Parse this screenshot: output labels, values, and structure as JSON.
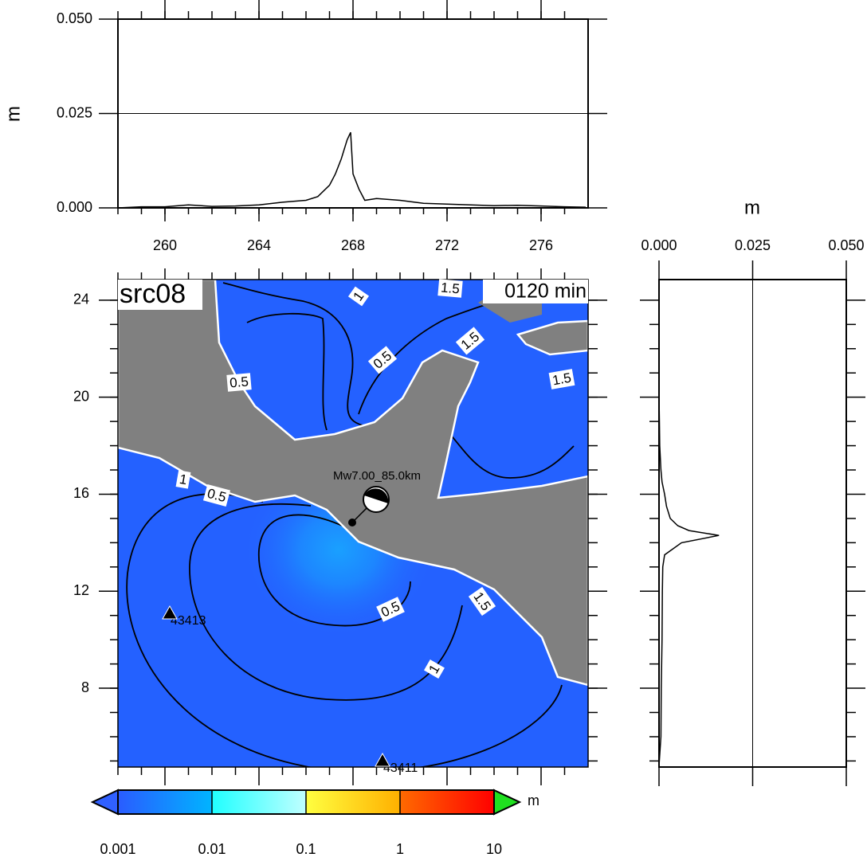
{
  "top_profile": {
    "type": "line",
    "y_label": "m",
    "xlim": [
      258,
      278
    ],
    "ylim": [
      0,
      0.05
    ],
    "xticks": [
      260,
      264,
      268,
      272,
      276
    ],
    "xticks_minor": [
      258,
      259,
      260,
      261,
      262,
      263,
      264,
      265,
      266,
      267,
      268,
      269,
      270,
      271,
      272,
      273,
      274,
      275,
      276,
      277
    ],
    "yticks": [
      {
        "value": 0,
        "label": "0.000"
      },
      {
        "value": 0.025,
        "label": "0.025"
      },
      {
        "value": 0.05,
        "label": "0.050"
      }
    ],
    "grid": true,
    "color": "#000000",
    "x": [
      258,
      259,
      260,
      261,
      262,
      263,
      264,
      265,
      266,
      266.5,
      267,
      267.25,
      267.5,
      267.75,
      267.9,
      268,
      268.25,
      268.5,
      269,
      270,
      271,
      272,
      273,
      274,
      275,
      276,
      277,
      277.9
    ],
    "values": [
      0,
      0.0003,
      0.0003,
      0.0008,
      0.0004,
      0.0005,
      0.0008,
      0.0015,
      0.002,
      0.003,
      0.006,
      0.009,
      0.013,
      0.018,
      0.02,
      0.009,
      0.005,
      0.002,
      0.0025,
      0.002,
      0.0012,
      0.001,
      0.0008,
      0.0006,
      0.0007,
      0.0005,
      0.0003,
      0.0002
    ]
  },
  "map": {
    "title": "src08",
    "time_label": "0120 min",
    "xlim": [
      258,
      278
    ],
    "ylim": [
      4.75,
      24.85
    ],
    "xticks_minor": [
      258,
      259,
      260,
      261,
      262,
      263,
      264,
      265,
      266,
      267,
      268,
      269,
      270,
      271,
      272,
      273,
      274,
      275,
      276,
      277
    ],
    "yticks": [
      8,
      12,
      16,
      20,
      24
    ],
    "yticks_minor": [
      5,
      6,
      7,
      8,
      9,
      10,
      11,
      12,
      13,
      14,
      15,
      16,
      17,
      18,
      19,
      20,
      21,
      22,
      23,
      24
    ],
    "source_label": "Mw7.00_85.0km",
    "contour_labels": [
      "1",
      "1.5",
      "1.5",
      "0.5",
      "1.5",
      "0.5",
      "1",
      "0.5",
      "0.5",
      "1.5",
      "1"
    ],
    "stations": [
      "43413",
      "43411"
    ]
  },
  "side_profile": {
    "type": "line",
    "x_label": "m",
    "xlim": [
      0,
      0.05
    ],
    "ylim": [
      4.75,
      24.85
    ],
    "xticks": [
      {
        "value": 0,
        "label": "0.000"
      },
      {
        "value": 0.025,
        "label": "0.025"
      },
      {
        "value": 0.05,
        "label": "0.050"
      }
    ],
    "yticks_minor": [
      5,
      6,
      7,
      8,
      9,
      10,
      11,
      12,
      13,
      14,
      15,
      16,
      17,
      18,
      19,
      20,
      21,
      22,
      23,
      24
    ],
    "grid": true,
    "color": "#000000",
    "y": [
      4.8,
      6,
      8,
      10,
      12,
      13,
      13.5,
      14,
      14.3,
      14.5,
      14.7,
      15,
      15.5,
      16,
      16.5,
      17,
      18,
      19,
      20,
      22,
      24,
      24.8
    ],
    "values": [
      0,
      0.0005,
      0.0006,
      0.0008,
      0.0009,
      0.001,
      0.0015,
      0.006,
      0.016,
      0.008,
      0.005,
      0.003,
      0.002,
      0.0015,
      0.0008,
      0.0005,
      0.0002,
      0.0001,
      0,
      0,
      0,
      0
    ]
  },
  "colorbar": {
    "type": "log",
    "ticks": [
      0.001,
      0.01,
      0.1,
      1,
      10
    ],
    "unit": "m",
    "colors": [
      "#2a5cff",
      "#00b4ff",
      "#20ffff",
      "#c0ffff",
      "#ffff40",
      "#ffb000",
      "#ff6a00",
      "#ff0000"
    ],
    "under_color": "#3060ff",
    "over_color": "#20e020"
  }
}
